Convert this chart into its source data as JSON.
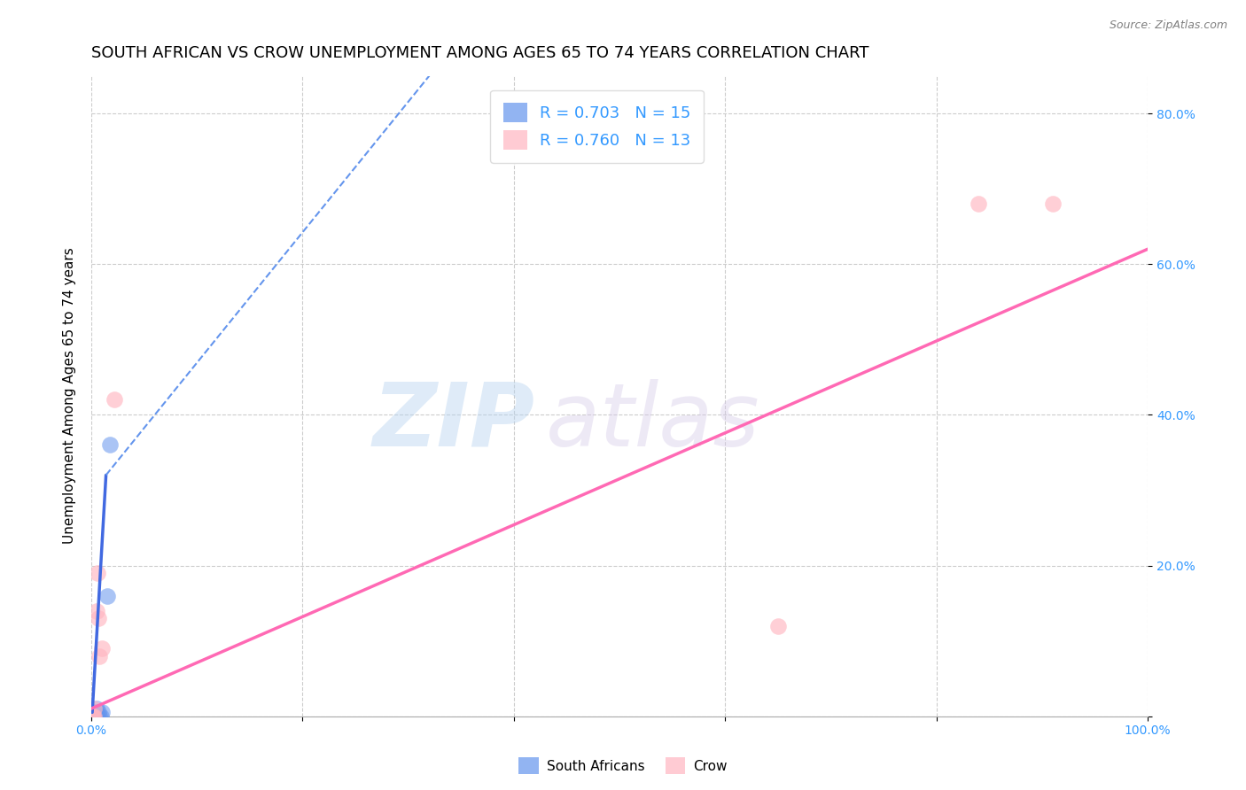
{
  "title": "SOUTH AFRICAN VS CROW UNEMPLOYMENT AMONG AGES 65 TO 74 YEARS CORRELATION CHART",
  "source": "Source: ZipAtlas.com",
  "ylabel": "Unemployment Among Ages 65 to 74 years",
  "xlim": [
    0.0,
    1.0
  ],
  "ylim": [
    0.0,
    0.85
  ],
  "xticks": [
    0.0,
    0.2,
    0.4,
    0.6,
    0.8,
    1.0
  ],
  "xtick_labels": [
    "0.0%",
    "",
    "",
    "",
    "",
    "100.0%"
  ],
  "ytick_labels": [
    "",
    "20.0%",
    "40.0%",
    "60.0%",
    "80.0%"
  ],
  "yticks": [
    0.0,
    0.2,
    0.4,
    0.6,
    0.8
  ],
  "watermark_line1": "ZIP",
  "watermark_line2": "atlas",
  "legend_R1": "R = 0.703",
  "legend_N1": "N = 15",
  "legend_R2": "R = 0.760",
  "legend_N2": "N = 13",
  "blue_color": "#6495ED",
  "pink_color": "#FFB6C1",
  "blue_line_color": "#4169E1",
  "pink_line_color": "#FF69B4",
  "blue_scatter": [
    [
      0.001,
      0.0
    ],
    [
      0.002,
      0.0
    ],
    [
      0.003,
      0.0
    ],
    [
      0.003,
      0.005
    ],
    [
      0.004,
      0.0
    ],
    [
      0.004,
      0.005
    ],
    [
      0.005,
      0.01
    ],
    [
      0.005,
      0.0
    ],
    [
      0.006,
      0.0
    ],
    [
      0.007,
      0.005
    ],
    [
      0.008,
      0.0
    ],
    [
      0.009,
      0.0
    ],
    [
      0.01,
      0.005
    ],
    [
      0.015,
      0.16
    ],
    [
      0.018,
      0.36
    ]
  ],
  "pink_scatter": [
    [
      0.001,
      0.0
    ],
    [
      0.002,
      0.0
    ],
    [
      0.003,
      0.0
    ],
    [
      0.003,
      0.01
    ],
    [
      0.005,
      0.14
    ],
    [
      0.006,
      0.19
    ],
    [
      0.007,
      0.13
    ],
    [
      0.008,
      0.08
    ],
    [
      0.01,
      0.09
    ],
    [
      0.022,
      0.42
    ],
    [
      0.65,
      0.12
    ],
    [
      0.84,
      0.68
    ],
    [
      0.91,
      0.68
    ]
  ],
  "blue_solid_line": {
    "x0": 0.001,
    "x1": 0.014,
    "y0": 0.005,
    "y1": 0.32
  },
  "blue_dashed_line": {
    "x0": 0.014,
    "x1": 0.32,
    "y0": 0.32,
    "y1": 0.85
  },
  "pink_line": {
    "x0": 0.0,
    "x1": 1.0,
    "y0": 0.01,
    "y1": 0.62
  },
  "background_color": "#ffffff",
  "grid_color": "#cccccc",
  "title_fontsize": 13,
  "axis_label_fontsize": 11,
  "tick_fontsize": 10,
  "tick_color": "#3399FF",
  "legend_fontsize": 13
}
